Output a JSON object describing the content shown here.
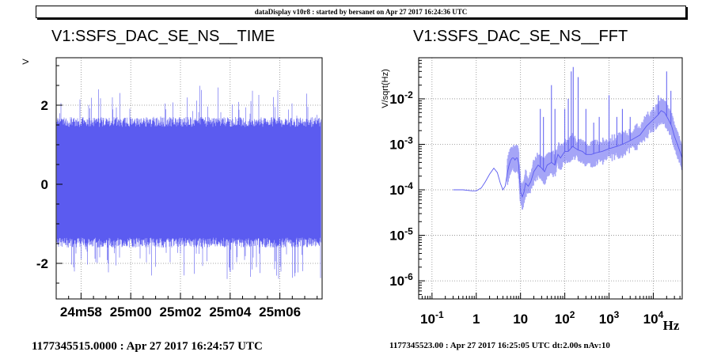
{
  "header": {
    "banner": "dataDisplay v10r8 : started by bersanet on Apr 27 2017 16:24:36 UTC"
  },
  "left_panel": {
    "title": "V1:SSFS_DAC_SE_NS__TIME",
    "ylabel": "V",
    "footer": "1177345515.0000 : Apr 27 2017 16:24:57 UTC"
  },
  "right_panel": {
    "title": "V1:SSFS_DAC_SE_NS__FFT",
    "ylabel": "V/sqrt(Hz)",
    "xunit": "Hz",
    "footer": "1177345523.00 : Apr 27 2017 16:25:05 UTC dt:2.00s nAv:10"
  },
  "colors": {
    "trace": "#5b5bf0",
    "grid": "#8a8a8a",
    "axis": "#000000",
    "background": "#ffffff"
  },
  "chart_data": [
    {
      "type": "line",
      "title": "V1:SSFS_DAC_SE_NS__TIME",
      "ylabel": "V",
      "xlabel": "",
      "x_ticks": [
        "24m58",
        "25m00",
        "25m02",
        "25m04",
        "25m06"
      ],
      "x_range_s": [
        -1.0,
        9.7
      ],
      "ylim": [
        -2.9,
        3.2
      ],
      "y_ticks": [
        -2,
        0,
        2
      ],
      "grid": true,
      "envelope": {
        "typical_upper": 1.7,
        "typical_lower": -1.6,
        "peak_upper": 2.5,
        "peak_lower": -2.4
      }
    },
    {
      "type": "line",
      "title": "V1:SSFS_DAC_SE_NS__FFT",
      "ylabel": "V/sqrt(Hz)",
      "xlabel": "Hz",
      "x_scale": "log",
      "y_scale": "log",
      "xlim": [
        0.05,
        45000
      ],
      "ylim": [
        4e-07,
        0.08
      ],
      "x_ticks": [
        "10^-1",
        "1",
        "10",
        "10^2",
        "10^3",
        "10^4"
      ],
      "y_ticks": [
        "10^-6",
        "10^-5",
        "10^-4",
        "10^-3",
        "10^-2"
      ],
      "grid": true,
      "series": [
        {
          "x": [
            0.3,
            0.5,
            0.8,
            1.0,
            1.3,
            1.6,
            2.0,
            2.5,
            3.0,
            3.5,
            4.0,
            4.5,
            5.0,
            5.5,
            6.0,
            6.5,
            7.0,
            7.5,
            8.0,
            8.5,
            9.0,
            10,
            11,
            12,
            13,
            15,
            17,
            20,
            25,
            30,
            35,
            40,
            50,
            60,
            70,
            80,
            100,
            120,
            150,
            200,
            250,
            300,
            400,
            500,
            700,
            1000,
            1500,
            2000,
            3000,
            5000,
            7000,
            10000,
            13000,
            15000,
            18000,
            22000,
            26000,
            30000,
            35000,
            40000,
            45000
          ],
          "y": [
            0.0001,
            0.0001,
            9.5e-05,
            9.5e-05,
            0.00011,
            0.00015,
            0.00022,
            0.0003,
            0.00024,
            0.00014,
            0.0001,
            0.00012,
            0.00023,
            0.00035,
            0.00045,
            0.0005,
            0.0005,
            0.00045,
            0.0005,
            0.0005,
            0.0004,
            9e-05,
            7e-05,
            9e-05,
            0.00014,
            0.00012,
            0.00015,
            0.00025,
            0.00035,
            0.0003,
            0.00025,
            0.00035,
            0.0004,
            0.00035,
            0.0006,
            0.0005,
            0.0007,
            0.0007,
            0.0009,
            0.00075,
            0.0007,
            0.0006,
            0.0006,
            0.00065,
            0.0007,
            0.0008,
            0.0009,
            0.001,
            0.0012,
            0.0016,
            0.0025,
            0.0035,
            0.0045,
            0.0055,
            0.005,
            0.0035,
            0.0025,
            0.0015,
            0.001,
            0.0007,
            0.0005
          ]
        }
      ],
      "peaks": [
        {
          "x": 28,
          "y": 0.006
        },
        {
          "x": 33,
          "y": 0.004
        },
        {
          "x": 50,
          "y": 0.02
        },
        {
          "x": 60,
          "y": 0.006
        },
        {
          "x": 100,
          "y": 0.006
        },
        {
          "x": 120,
          "y": 0.01
        },
        {
          "x": 140,
          "y": 0.04
        },
        {
          "x": 155,
          "y": 0.05
        },
        {
          "x": 200,
          "y": 0.03
        },
        {
          "x": 300,
          "y": 0.006
        },
        {
          "x": 450,
          "y": 0.003
        },
        {
          "x": 600,
          "y": 0.004
        },
        {
          "x": 1000,
          "y": 0.012
        },
        {
          "x": 1500,
          "y": 0.004
        },
        {
          "x": 2000,
          "y": 0.006
        },
        {
          "x": 3000,
          "y": 0.004
        },
        {
          "x": 13000,
          "y": 0.012
        },
        {
          "x": 20000,
          "y": 0.04
        },
        {
          "x": 25000,
          "y": 0.015
        }
      ]
    }
  ]
}
